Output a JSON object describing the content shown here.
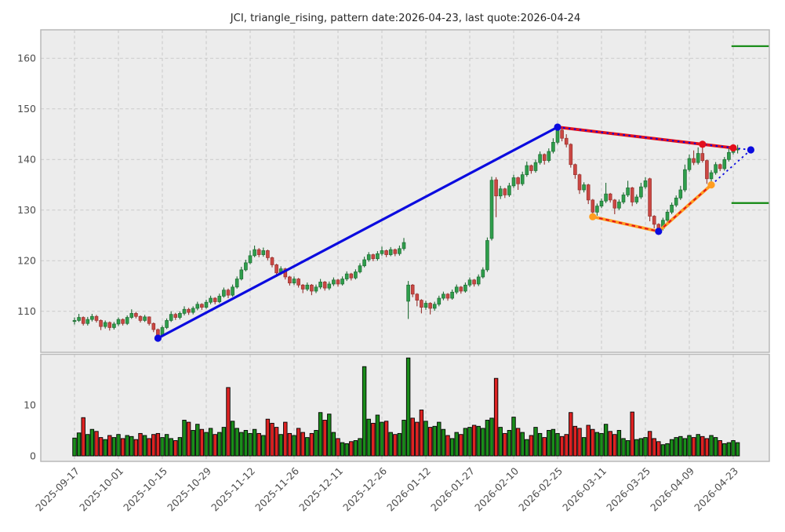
{
  "title": "JCI, triangle_rising, pattern date:2026-04-23, last quote:2026-04-24",
  "chart_data": {
    "type": "candlestick",
    "symbol": "JCI",
    "pattern": "triangle_rising",
    "pattern_date": "2026-04-23",
    "last_quote": "2026-04-24",
    "legend_position": "none",
    "grid": "dashed",
    "x_tick_labels": [
      "2025-09-17",
      "2025-10-01",
      "2025-10-15",
      "2025-10-29",
      "2025-11-12",
      "2025-11-26",
      "2025-12-11",
      "2025-12-26",
      "2026-01-12",
      "2026-01-27",
      "2026-02-10",
      "2026-02-25",
      "2026-03-11",
      "2026-03-25",
      "2026-04-09",
      "2026-04-23"
    ],
    "x_tick_indices": [
      0,
      10,
      20,
      30,
      40,
      50,
      60,
      70,
      80,
      90,
      100,
      110,
      120,
      130,
      140,
      150
    ],
    "price_axis": {
      "ticks": [
        110,
        120,
        130,
        140,
        150,
        160
      ],
      "range": [
        101.8,
        165.6
      ]
    },
    "volume_axis": {
      "ticks": [
        0,
        10
      ],
      "range": [
        0,
        21
      ]
    },
    "candles": [
      [
        108.0,
        108.8,
        107.4,
        108.2,
        3.5
      ],
      [
        108.2,
        109.5,
        107.9,
        108.8,
        4.5
      ],
      [
        108.8,
        109.0,
        107.2,
        107.6,
        7.5
      ],
      [
        107.6,
        108.9,
        107.2,
        108.4,
        4.2
      ],
      [
        108.4,
        109.5,
        108.0,
        109.0,
        5.2
      ],
      [
        109.0,
        109.3,
        107.8,
        108.2,
        4.8
      ],
      [
        108.2,
        108.4,
        106.3,
        107.0,
        3.6
      ],
      [
        107.0,
        108.2,
        106.6,
        107.8,
        3.2
      ],
      [
        107.8,
        108.0,
        106.2,
        106.8,
        4.0
      ],
      [
        106.8,
        107.9,
        106.4,
        107.5,
        3.6
      ],
      [
        107.5,
        108.8,
        107.1,
        108.4,
        4.2
      ],
      [
        108.4,
        108.6,
        107.2,
        107.6,
        3.4
      ],
      [
        107.6,
        109.2,
        107.3,
        108.8,
        4.0
      ],
      [
        108.8,
        110.4,
        108.5,
        109.6,
        3.8
      ],
      [
        109.6,
        109.9,
        108.6,
        109.0,
        3.2
      ],
      [
        109.0,
        109.2,
        107.8,
        108.2,
        4.4
      ],
      [
        108.2,
        109.3,
        107.9,
        108.9,
        4.0
      ],
      [
        108.9,
        109.0,
        107.2,
        107.6,
        3.4
      ],
      [
        107.6,
        107.8,
        105.9,
        106.4,
        4.2
      ],
      [
        106.4,
        106.6,
        104.7,
        105.2,
        4.4
      ],
      [
        105.2,
        107.2,
        105.0,
        106.8,
        3.6
      ],
      [
        106.8,
        108.6,
        106.5,
        108.2,
        4.2
      ],
      [
        108.2,
        110.0,
        107.9,
        109.4,
        3.4
      ],
      [
        109.4,
        109.7,
        108.3,
        108.8,
        3.0
      ],
      [
        108.8,
        110.0,
        108.4,
        109.6,
        3.6
      ],
      [
        109.6,
        111.0,
        109.2,
        110.4,
        7.0
      ],
      [
        110.4,
        110.7,
        109.3,
        109.8,
        6.6
      ],
      [
        109.8,
        111.0,
        109.4,
        110.6,
        5.0
      ],
      [
        110.6,
        111.9,
        110.2,
        111.4,
        6.2
      ],
      [
        111.4,
        111.6,
        110.3,
        110.8,
        5.2
      ],
      [
        110.8,
        112.3,
        110.5,
        111.8,
        4.6
      ],
      [
        111.8,
        113.1,
        111.4,
        112.6,
        5.4
      ],
      [
        112.6,
        112.8,
        111.4,
        111.9,
        4.2
      ],
      [
        111.9,
        113.5,
        111.6,
        113.0,
        4.6
      ],
      [
        113.0,
        114.7,
        112.7,
        114.2,
        5.6
      ],
      [
        114.2,
        114.5,
        112.6,
        113.2,
        13.4
      ],
      [
        113.2,
        115.3,
        112.9,
        114.8,
        6.8
      ],
      [
        114.8,
        116.9,
        114.5,
        116.4,
        5.4
      ],
      [
        116.4,
        118.8,
        116.1,
        118.2,
        4.6
      ],
      [
        118.2,
        120.2,
        117.9,
        119.6,
        5.0
      ],
      [
        119.6,
        122.0,
        119.3,
        121.0,
        4.4
      ],
      [
        121.0,
        123.0,
        120.7,
        122.2,
        5.2
      ],
      [
        122.2,
        122.5,
        120.7,
        121.2,
        4.4
      ],
      [
        121.2,
        122.6,
        120.8,
        122.0,
        4.0
      ],
      [
        122.0,
        122.2,
        120.1,
        120.6,
        7.2
      ],
      [
        120.6,
        120.8,
        118.7,
        119.2,
        6.4
      ],
      [
        119.2,
        119.4,
        116.8,
        117.6,
        5.6
      ],
      [
        117.6,
        118.9,
        117.2,
        118.4,
        4.2
      ],
      [
        118.4,
        118.6,
        116.3,
        116.8,
        6.6
      ],
      [
        116.8,
        117.0,
        115.1,
        115.6,
        4.4
      ],
      [
        115.6,
        116.9,
        115.2,
        116.4,
        4.0
      ],
      [
        116.4,
        116.6,
        114.7,
        115.2,
        5.4
      ],
      [
        115.2,
        115.4,
        113.6,
        114.4,
        4.6
      ],
      [
        114.4,
        115.7,
        114.0,
        115.2,
        3.6
      ],
      [
        115.2,
        115.4,
        113.2,
        114.0,
        4.4
      ],
      [
        114.0,
        115.3,
        113.6,
        114.8,
        5.0
      ],
      [
        114.8,
        116.4,
        114.4,
        115.8,
        8.5
      ],
      [
        115.8,
        116.0,
        114.1,
        114.6,
        7.0
      ],
      [
        114.6,
        115.9,
        114.2,
        115.4,
        8.2
      ],
      [
        115.4,
        116.7,
        115.0,
        116.2,
        4.6
      ],
      [
        116.2,
        116.4,
        114.9,
        115.4,
        3.4
      ],
      [
        115.4,
        116.9,
        115.1,
        116.4,
        2.6
      ],
      [
        116.4,
        117.9,
        116.0,
        117.4,
        2.4
      ],
      [
        117.4,
        117.6,
        116.1,
        116.6,
        2.8
      ],
      [
        116.6,
        118.3,
        116.3,
        117.8,
        3.0
      ],
      [
        117.8,
        119.5,
        117.5,
        119.0,
        3.4
      ],
      [
        119.0,
        120.8,
        118.7,
        120.2,
        17.5
      ],
      [
        120.2,
        121.7,
        119.8,
        121.2,
        7.2
      ],
      [
        121.2,
        121.4,
        119.9,
        120.4,
        6.4
      ],
      [
        120.4,
        121.9,
        120.0,
        121.4,
        8.0
      ],
      [
        121.4,
        122.8,
        121.0,
        122.0,
        6.6
      ],
      [
        122.0,
        122.2,
        120.7,
        121.2,
        6.8
      ],
      [
        121.2,
        122.7,
        120.9,
        122.2,
        4.6
      ],
      [
        122.2,
        122.4,
        120.9,
        121.4,
        4.2
      ],
      [
        121.4,
        123.0,
        121.0,
        122.4,
        4.4
      ],
      [
        122.4,
        124.5,
        122.0,
        123.6,
        7.0
      ],
      [
        112.0,
        116.0,
        108.5,
        115.2,
        19.2
      ],
      [
        115.2,
        115.4,
        112.8,
        113.4,
        7.4
      ],
      [
        113.4,
        113.6,
        111.0,
        112.2,
        6.6
      ],
      [
        112.2,
        112.4,
        109.6,
        110.8,
        9.0
      ],
      [
        110.8,
        112.1,
        110.3,
        111.6,
        6.8
      ],
      [
        111.6,
        111.8,
        109.4,
        110.6,
        5.6
      ],
      [
        110.6,
        111.9,
        110.1,
        111.4,
        5.8
      ],
      [
        111.4,
        113.1,
        111.0,
        112.6,
        6.6
      ],
      [
        112.6,
        113.9,
        112.2,
        113.4,
        5.2
      ],
      [
        113.4,
        113.6,
        112.1,
        112.6,
        4.0
      ],
      [
        112.6,
        114.3,
        112.3,
        113.8,
        3.4
      ],
      [
        113.8,
        115.3,
        113.4,
        114.8,
        4.6
      ],
      [
        114.8,
        115.0,
        113.5,
        114.0,
        4.2
      ],
      [
        114.0,
        115.7,
        113.7,
        115.2,
        5.4
      ],
      [
        115.2,
        116.7,
        114.8,
        116.2,
        5.6
      ],
      [
        116.2,
        116.4,
        114.9,
        115.4,
        6.0
      ],
      [
        115.4,
        117.3,
        115.0,
        116.8,
        5.8
      ],
      [
        116.8,
        118.7,
        116.5,
        118.2,
        5.4
      ],
      [
        118.2,
        124.6,
        117.8,
        124.0,
        7.0
      ],
      [
        124.4,
        136.6,
        124.0,
        135.9,
        7.4
      ],
      [
        136.0,
        136.5,
        128.6,
        132.8,
        15.2
      ],
      [
        132.8,
        134.8,
        132.2,
        134.2,
        5.6
      ],
      [
        134.2,
        134.4,
        132.4,
        133.0,
        4.4
      ],
      [
        133.0,
        135.4,
        132.6,
        134.8,
        5.0
      ],
      [
        134.8,
        137.0,
        134.4,
        136.4,
        7.6
      ],
      [
        136.4,
        136.6,
        134.0,
        135.2,
        5.4
      ],
      [
        135.2,
        137.6,
        134.8,
        137.0,
        4.6
      ],
      [
        137.0,
        139.6,
        136.6,
        138.8,
        3.2
      ],
      [
        138.8,
        139.0,
        137.2,
        137.8,
        4.0
      ],
      [
        137.8,
        140.0,
        137.4,
        139.4,
        5.6
      ],
      [
        139.4,
        141.6,
        139.0,
        141.0,
        4.4
      ],
      [
        141.0,
        141.2,
        139.0,
        139.8,
        3.6
      ],
      [
        139.8,
        142.2,
        139.4,
        141.6,
        5.0
      ],
      [
        141.6,
        144.2,
        141.2,
        143.4,
        5.2
      ],
      [
        143.4,
        146.5,
        143.0,
        145.8,
        4.4
      ],
      [
        145.8,
        146.2,
        143.6,
        144.2,
        3.8
      ],
      [
        144.2,
        145.0,
        142.4,
        143.0,
        4.2
      ],
      [
        143.0,
        143.2,
        138.4,
        139.0,
        8.5
      ],
      [
        139.0,
        139.2,
        136.2,
        137.0,
        5.8
      ],
      [
        137.0,
        137.2,
        133.2,
        134.0,
        5.4
      ],
      [
        134.0,
        135.5,
        133.5,
        135.0,
        3.6
      ],
      [
        135.0,
        135.2,
        131.2,
        132.0,
        6.0
      ],
      [
        132.0,
        132.2,
        128.7,
        129.6,
        5.2
      ],
      [
        129.6,
        131.3,
        128.9,
        130.8,
        4.6
      ],
      [
        130.8,
        132.3,
        130.4,
        131.8,
        4.4
      ],
      [
        131.8,
        135.4,
        131.4,
        133.2,
        6.2
      ],
      [
        133.2,
        133.4,
        131.5,
        132.0,
        4.8
      ],
      [
        132.0,
        132.2,
        129.2,
        130.4,
        4.2
      ],
      [
        130.4,
        132.1,
        130.0,
        131.6,
        5.0
      ],
      [
        131.6,
        133.5,
        131.2,
        133.0,
        3.4
      ],
      [
        133.0,
        135.8,
        132.6,
        134.4,
        3.0
      ],
      [
        134.4,
        134.6,
        130.8,
        131.6,
        8.6
      ],
      [
        131.6,
        133.1,
        131.2,
        132.6,
        3.2
      ],
      [
        132.6,
        135.4,
        132.2,
        134.6,
        3.4
      ],
      [
        134.6,
        136.5,
        134.2,
        135.8,
        3.6
      ],
      [
        136.2,
        136.4,
        127.8,
        128.8,
        4.8
      ],
      [
        128.8,
        129.0,
        126.4,
        127.2,
        3.4
      ],
      [
        127.2,
        127.4,
        125.8,
        126.4,
        2.8
      ],
      [
        126.4,
        128.5,
        126.0,
        128.0,
        2.2
      ],
      [
        128.0,
        130.1,
        127.6,
        129.6,
        2.4
      ],
      [
        129.6,
        131.5,
        129.2,
        131.0,
        3.2
      ],
      [
        131.0,
        132.9,
        130.6,
        132.4,
        3.6
      ],
      [
        132.4,
        134.8,
        132.0,
        134.0,
        3.8
      ],
      [
        134.0,
        139.0,
        133.6,
        138.0,
        3.4
      ],
      [
        138.0,
        141.0,
        137.6,
        140.2,
        4.0
      ],
      [
        140.2,
        141.8,
        138.9,
        139.4,
        3.6
      ],
      [
        139.4,
        142.4,
        139.0,
        141.2,
        4.2
      ],
      [
        141.2,
        143.1,
        139.4,
        139.8,
        3.8
      ],
      [
        139.8,
        140.0,
        135.2,
        136.2,
        3.4
      ],
      [
        136.2,
        137.9,
        135.0,
        137.4,
        4.0
      ],
      [
        137.4,
        139.5,
        137.0,
        139.0,
        3.6
      ],
      [
        139.0,
        139.2,
        137.7,
        138.2,
        3.0
      ],
      [
        138.2,
        140.5,
        137.8,
        140.0,
        2.4
      ],
      [
        140.0,
        142.2,
        139.6,
        141.4,
        2.6
      ],
      [
        141.4,
        142.6,
        141.0,
        141.9,
        3.0
      ],
      [
        141.9,
        142.9,
        141.2,
        142.1,
        2.6
      ]
    ],
    "trendlines": [
      {
        "name": "uptrend-line",
        "color": "blue",
        "style": "solid",
        "points": [
          [
            19,
            104.7
          ],
          [
            110,
            146.4
          ]
        ]
      },
      {
        "name": "resistance-line",
        "color": "red",
        "style": "solid+blue-dotted",
        "points": [
          [
            110,
            146.4
          ],
          [
            150,
            142.3
          ]
        ]
      },
      {
        "name": "support-line-1",
        "color": "orange",
        "style": "solid+red-dashed",
        "points": [
          [
            118,
            128.7
          ],
          [
            133,
            125.8
          ]
        ]
      },
      {
        "name": "support-line-2",
        "color": "orange",
        "style": "solid+red-dashed",
        "points": [
          [
            133,
            125.8
          ],
          [
            145,
            135.0
          ]
        ]
      },
      {
        "name": "apex-projection-upper",
        "color": "blue",
        "style": "dotted",
        "points": [
          [
            150,
            142.3
          ],
          [
            154,
            141.9
          ]
        ]
      },
      {
        "name": "apex-projection-lower",
        "color": "blue",
        "style": "dotted",
        "points": [
          [
            145,
            135.0
          ],
          [
            154,
            141.9
          ]
        ]
      }
    ],
    "markers": [
      {
        "name": "uptrend-start-dot",
        "color": "blue",
        "index": 19,
        "price": 104.7
      },
      {
        "name": "pattern-peak-dot",
        "color": "blue",
        "index": 110,
        "price": 146.4
      },
      {
        "name": "pattern-low-dot",
        "color": "blue",
        "index": 133,
        "price": 125.8
      },
      {
        "name": "apex-dot",
        "color": "blue",
        "index": 154,
        "price": 141.9
      },
      {
        "name": "support-pivot-1-dot",
        "color": "orange",
        "index": 118,
        "price": 128.7
      },
      {
        "name": "support-pivot-2-dot",
        "color": "orange",
        "index": 145,
        "price": 135.0
      },
      {
        "name": "resistance-touch-dot",
        "color": "red",
        "index": 143,
        "price": 143.0
      },
      {
        "name": "resistance-end-dot",
        "color": "red",
        "index": 150,
        "price": 142.3
      }
    ],
    "levels": [
      {
        "name": "upper-target-level",
        "price": 162.4,
        "index_from": 149.6,
        "index_to": 158.2
      },
      {
        "name": "lower-target-level",
        "price": 131.4,
        "index_from": 149.6,
        "index_to": 158.2
      }
    ],
    "colors": {
      "up": "#2e9e4b",
      "up_edge": "#1e6b33",
      "down": "#cb4743",
      "down_edge": "#96322e",
      "vol_up": "#1a8c1a",
      "vol_down": "#dd2222",
      "vol_edge": "#000000",
      "trend_blue": "#0b0bdf",
      "trend_red": "#e3101d",
      "trend_orange": "#ff9d20",
      "level_green": "#0f870f",
      "grid": "#c9c9c9",
      "panel_bg": "#ececec",
      "fig_bg": "#ffffff",
      "spine": "#b9b9b9",
      "tick_text": "#4d4d4d",
      "title_text": "#262626"
    }
  }
}
